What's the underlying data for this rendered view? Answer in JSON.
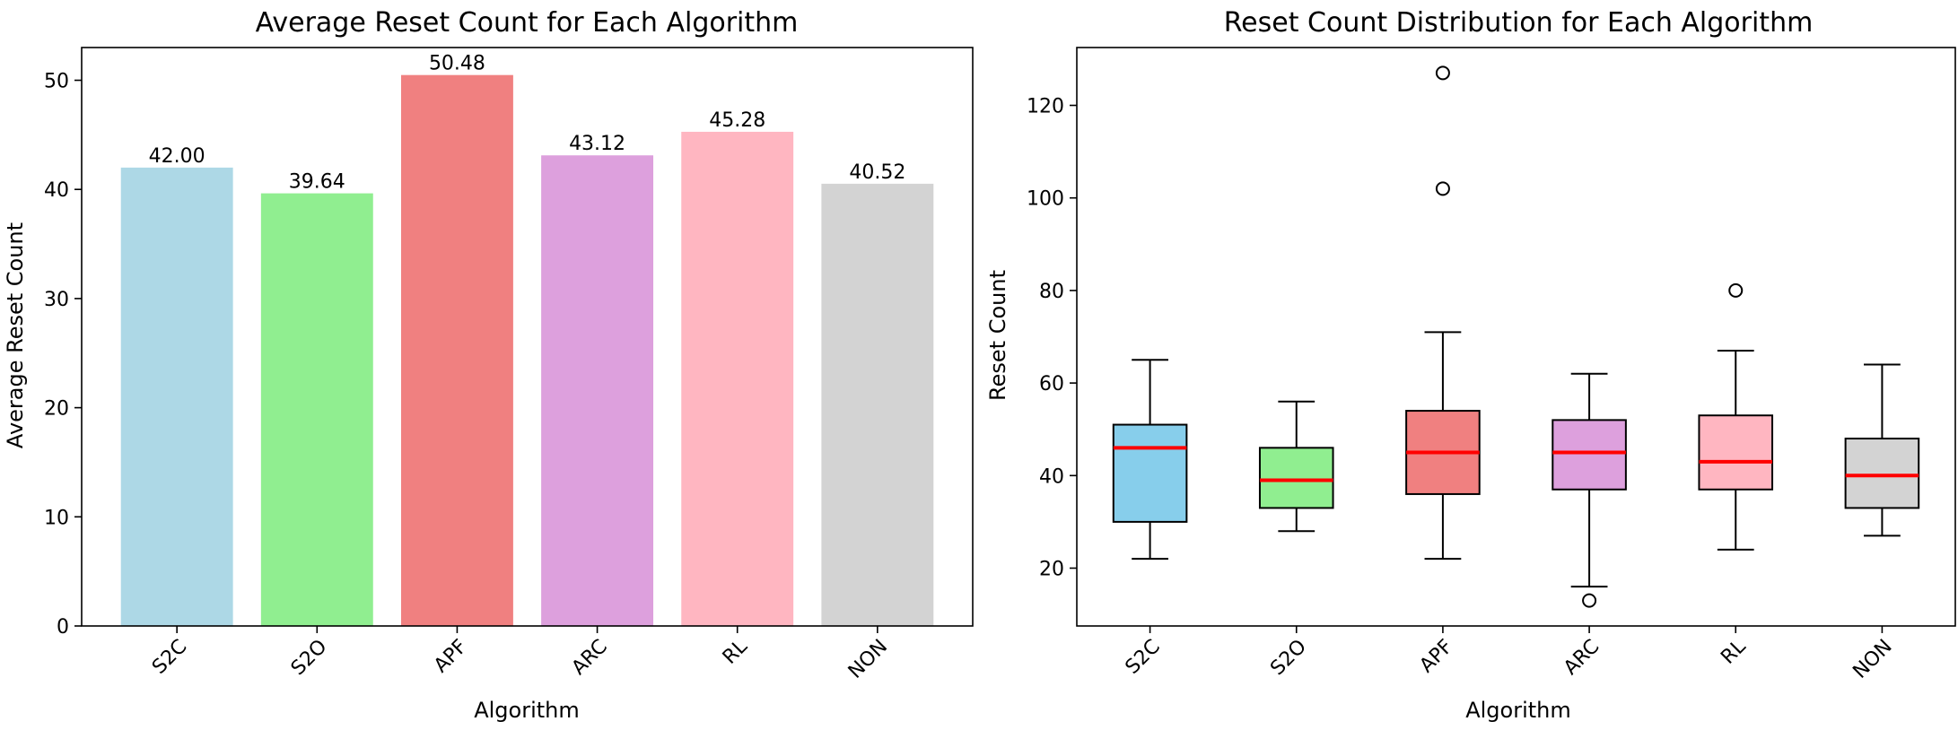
{
  "chart_data": [
    {
      "type": "bar",
      "title": "Average Reset Count for Each Algorithm",
      "xlabel": "Algorithm",
      "ylabel": "Average Reset Count",
      "categories": [
        "S2C",
        "S2O",
        "APF",
        "ARC",
        "RL",
        "NON"
      ],
      "values": [
        42.0,
        39.64,
        50.48,
        43.12,
        45.28,
        40.52
      ],
      "value_labels": [
        "42.00",
        "39.64",
        "50.48",
        "43.12",
        "45.28",
        "40.52"
      ],
      "colors": [
        "#add8e6",
        "#90ee90",
        "#f08080",
        "#dda0dd",
        "#ffb6c1",
        "#d3d3d3"
      ],
      "ylim": [
        0,
        53
      ],
      "yticks": [
        0,
        10,
        20,
        30,
        40,
        50
      ],
      "grid": false,
      "legend": "none"
    },
    {
      "type": "box",
      "title": "Reset Count Distribution for Each Algorithm",
      "xlabel": "Algorithm",
      "ylabel": "Reset Count",
      "categories": [
        "S2C",
        "S2O",
        "APF",
        "ARC",
        "RL",
        "NON"
      ],
      "colors": [
        "#87ceeb",
        "#90ee90",
        "#f08080",
        "#dda0dd",
        "#ffb6c1",
        "#d3d3d3"
      ],
      "median_color": "#ff0000",
      "boxes": [
        {
          "whisker_low": 22,
          "q1": 30,
          "median": 46,
          "q3": 51,
          "whisker_high": 65,
          "outliers": []
        },
        {
          "whisker_low": 28,
          "q1": 33,
          "median": 39,
          "q3": 46,
          "whisker_high": 56,
          "outliers": []
        },
        {
          "whisker_low": 22,
          "q1": 36,
          "median": 45,
          "q3": 54,
          "whisker_high": 71,
          "outliers": [
            102,
            127
          ]
        },
        {
          "whisker_low": 16,
          "q1": 37,
          "median": 45,
          "q3": 52,
          "whisker_high": 62,
          "outliers": [
            13
          ]
        },
        {
          "whisker_low": 24,
          "q1": 37,
          "median": 43,
          "q3": 53,
          "whisker_high": 67,
          "outliers": [
            80
          ]
        },
        {
          "whisker_low": 27,
          "q1": 33,
          "median": 40,
          "q3": 48,
          "whisker_high": 64,
          "outliers": []
        }
      ],
      "ylim": [
        7.5,
        132.5
      ],
      "yticks": [
        20,
        40,
        60,
        80,
        100,
        120
      ],
      "grid": false,
      "legend": "none"
    }
  ]
}
